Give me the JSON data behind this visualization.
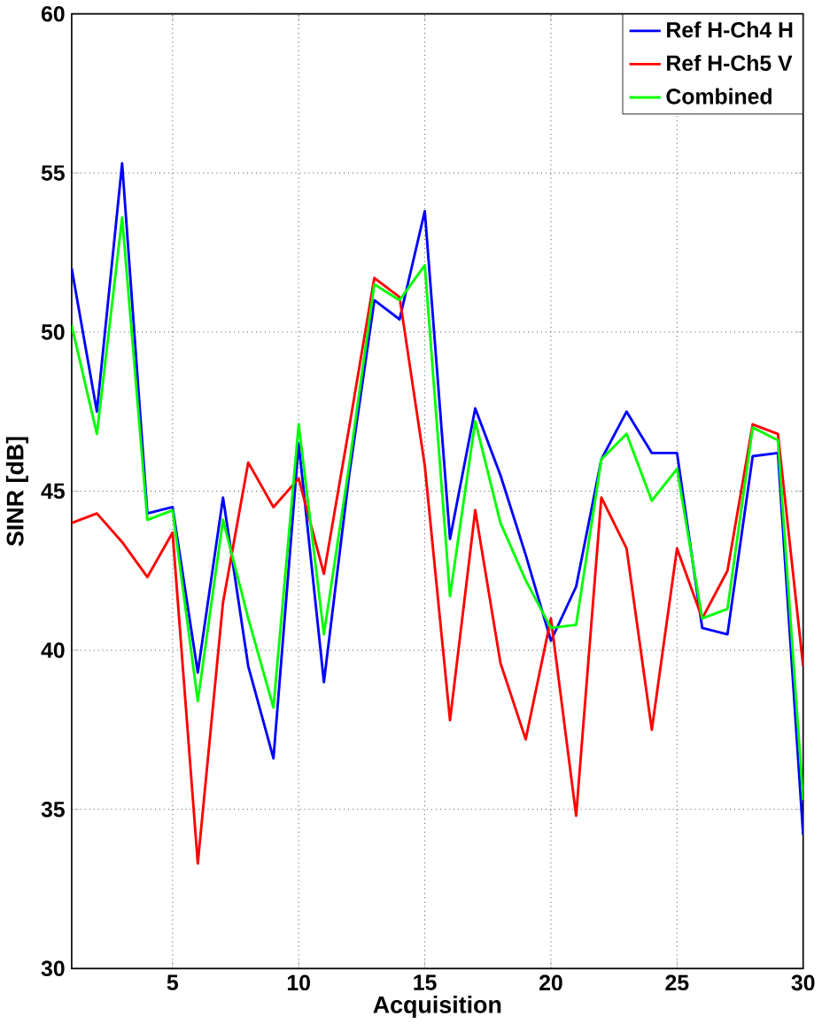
{
  "chart_data": {
    "type": "line",
    "xlabel": "Acquisition",
    "ylabel": "SINR [dB]",
    "x": [
      1,
      2,
      3,
      4,
      5,
      6,
      7,
      8,
      9,
      10,
      11,
      12,
      13,
      14,
      15,
      16,
      17,
      18,
      19,
      20,
      21,
      22,
      23,
      24,
      25,
      26,
      27,
      28,
      29,
      30
    ],
    "series": [
      {
        "name": "Ref H-Ch4 H",
        "color": "#0000ff",
        "values": [
          52,
          47.5,
          55.3,
          44.3,
          44.5,
          39.3,
          44.8,
          39.5,
          36.6,
          46.5,
          39,
          45.5,
          51,
          50.4,
          53.8,
          43.5,
          47.6,
          45.5,
          43,
          40.3,
          42,
          46,
          47.5,
          46.2,
          46.2,
          40.7,
          40.5,
          46.1,
          46.2,
          34.2
        ]
      },
      {
        "name": "Ref H-Ch5 V",
        "color": "#ff0000",
        "values": [
          44,
          44.3,
          43.4,
          42.3,
          43.7,
          33.3,
          41.5,
          45.9,
          44.5,
          45.4,
          42.4,
          47,
          51.7,
          51.1,
          45.8,
          37.8,
          44.4,
          39.6,
          37.2,
          41,
          34.8,
          44.8,
          43.2,
          37.5,
          43.2,
          41,
          42.5,
          47.1,
          46.8,
          39.5
        ]
      },
      {
        "name": "Combined",
        "color": "#00ff00",
        "values": [
          50.2,
          46.8,
          53.6,
          44.1,
          44.4,
          38.4,
          44.1,
          41,
          38.2,
          47.1,
          40.5,
          45.8,
          51.5,
          51,
          52.1,
          41.7,
          47.2,
          44,
          42.2,
          40.7,
          40.8,
          46,
          46.8,
          44.7,
          45.7,
          41,
          41.3,
          47,
          46.6,
          35.3
        ]
      }
    ],
    "xlim": [
      1,
      30
    ],
    "ylim": [
      30,
      60
    ],
    "xticks": [
      5,
      10,
      15,
      20,
      25,
      30
    ],
    "yticks": [
      30,
      35,
      40,
      45,
      50,
      55,
      60
    ],
    "grid": true,
    "legend": "top right",
    "marker": "none",
    "line_style": "solid"
  }
}
